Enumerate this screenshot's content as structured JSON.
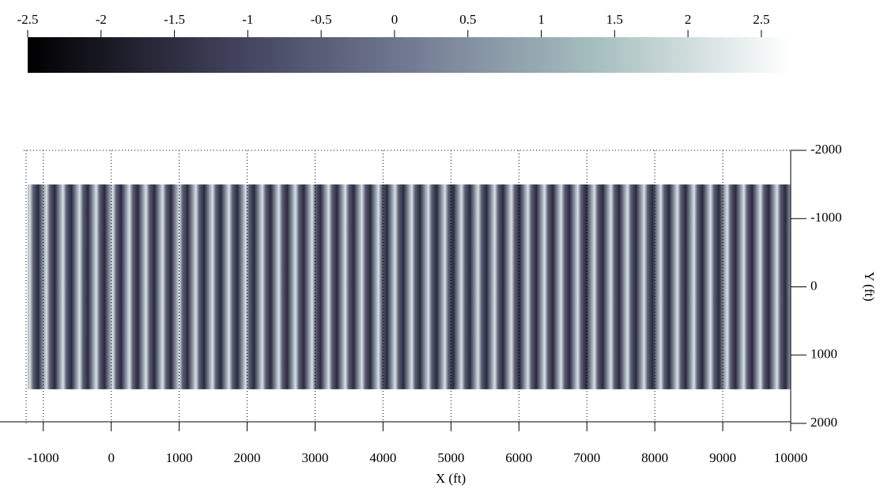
{
  "chart_data": {
    "type": "heatmap",
    "colorbar": {
      "clim": [
        -2.5,
        2.7
      ],
      "ticks": [
        -2.5,
        -2,
        -1.5,
        -1,
        -0.5,
        0,
        0.5,
        1,
        1.5,
        2,
        2.5
      ],
      "colormap": [
        "#000000",
        "#3c3c55",
        "#727a93",
        "#a8c0c0",
        "#ffffff"
      ]
    },
    "xlabel": "X (ft)",
    "ylabel": "Y (ft)",
    "xlim": [
      -1230,
      10000
    ],
    "xticks": [
      -1000,
      0,
      1000,
      2000,
      3000,
      4000,
      5000,
      6000,
      7000,
      8000,
      9000,
      10000
    ],
    "ylim": [
      -2000,
      2000
    ],
    "yticks": [
      -2000,
      -1000,
      0,
      1000,
      2000
    ],
    "extent": {
      "x": [
        -1230,
        10000
      ],
      "y": [
        -1500,
        1500
      ]
    },
    "grid": true
  }
}
